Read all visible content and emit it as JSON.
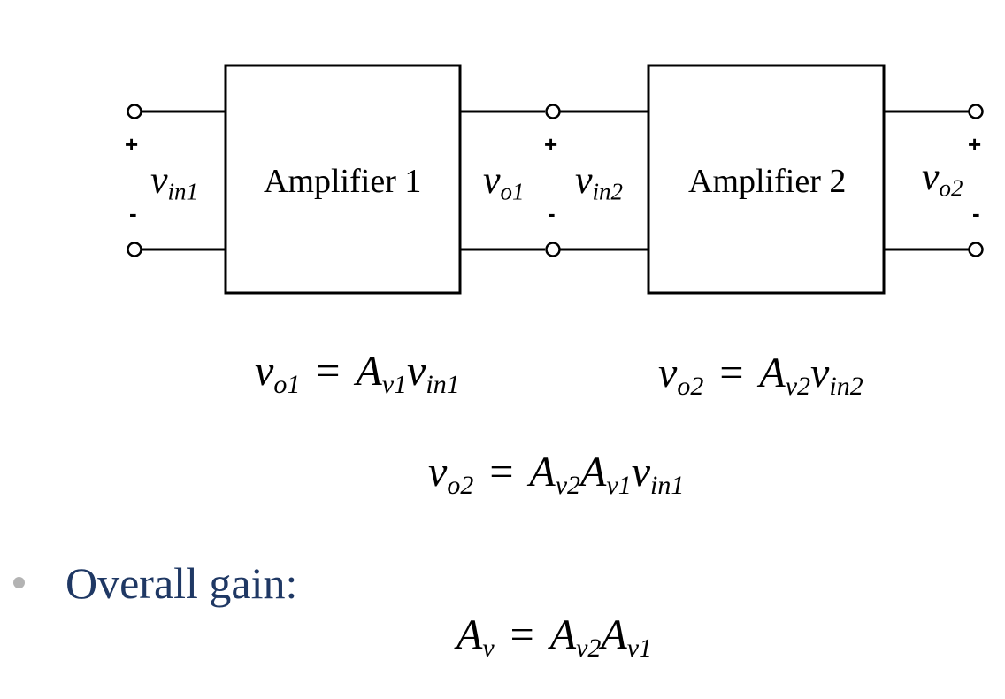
{
  "diagram": {
    "amplifier_1_label": "Amplifier 1",
    "amplifier_2_label": "Amplifier 2",
    "plus": "+",
    "minus": "-",
    "v_symbol": "v",
    "sub_in1": "in1",
    "sub_o1": "o1",
    "sub_in2": "in2",
    "sub_o2": "o2"
  },
  "equations": {
    "eq1": {
      "lhs": "v",
      "lhs_sub": "o1",
      "eq": "=",
      "t1": "A",
      "t1_sub": "v1",
      "t2": "v",
      "t2_sub": "in1"
    },
    "eq2": {
      "lhs": "v",
      "lhs_sub": "o2",
      "eq": "=",
      "t1": "A",
      "t1_sub": "v2",
      "t2": "v",
      "t2_sub": "in2"
    },
    "eq3": {
      "lhs": "v",
      "lhs_sub": "o2",
      "eq": "=",
      "t1": "A",
      "t1_sub": "v2",
      "t2": "A",
      "t2_sub": "v1",
      "t3": "v",
      "t3_sub": "in1"
    },
    "eq4": {
      "lhs": "A",
      "lhs_sub": "v",
      "eq": "=",
      "t1": "A",
      "t1_sub": "v2",
      "t2": "A",
      "t2_sub": "v1"
    }
  },
  "bullet": {
    "text": "Overall gain:"
  },
  "colors": {
    "title": "#1f3864",
    "bullet_text": "#1f3864",
    "bullet_dot": "#b3b3b3",
    "lines": "#000000"
  }
}
